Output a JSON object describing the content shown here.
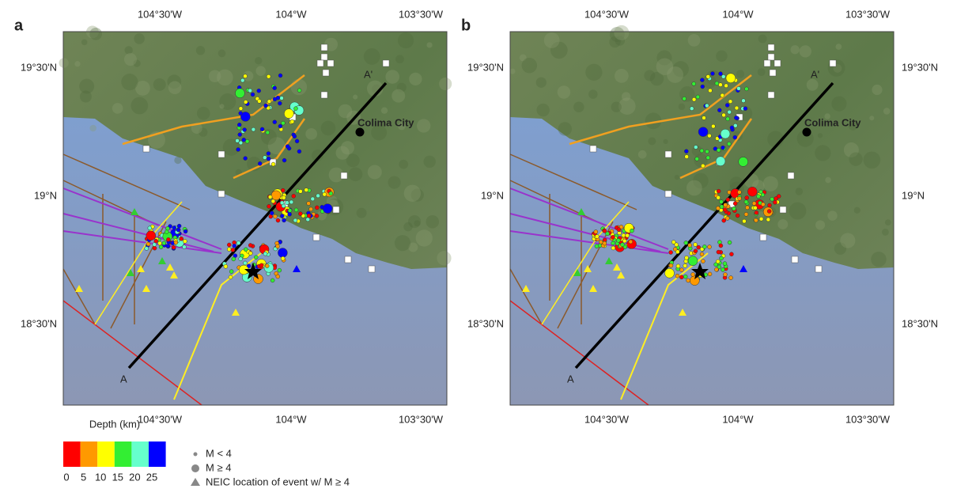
{
  "panels": [
    {
      "label": "a",
      "top_ticks": [
        "104°30'W",
        "104°W",
        "103°30'W"
      ],
      "bottom_ticks": [
        "104°30'W",
        "104°W",
        "103°30'W"
      ],
      "lat_ticks": [
        "19°30'N",
        "19°N",
        "18°30'N"
      ],
      "profile_start": "A",
      "profile_end": "A'",
      "city": "Colima City"
    },
    {
      "label": "b",
      "top_ticks": [
        "104°30'W",
        "104°W",
        "103°30'W"
      ],
      "bottom_ticks": [
        "104°30'W",
        "104°W",
        "103°30'W"
      ],
      "lat_ticks": [
        "19°30'N",
        "19°N",
        "18°30'N"
      ],
      "profile_start": "A",
      "profile_end": "A'",
      "city": "Colima City"
    }
  ],
  "legend": {
    "title": "Depth (km)",
    "depth_labels": [
      "0",
      "5",
      "10",
      "15",
      "20",
      "25"
    ],
    "items": [
      "M < 4",
      "M ≥ 4",
      "NEIC location of event w/ M ≥ 4"
    ]
  }
}
